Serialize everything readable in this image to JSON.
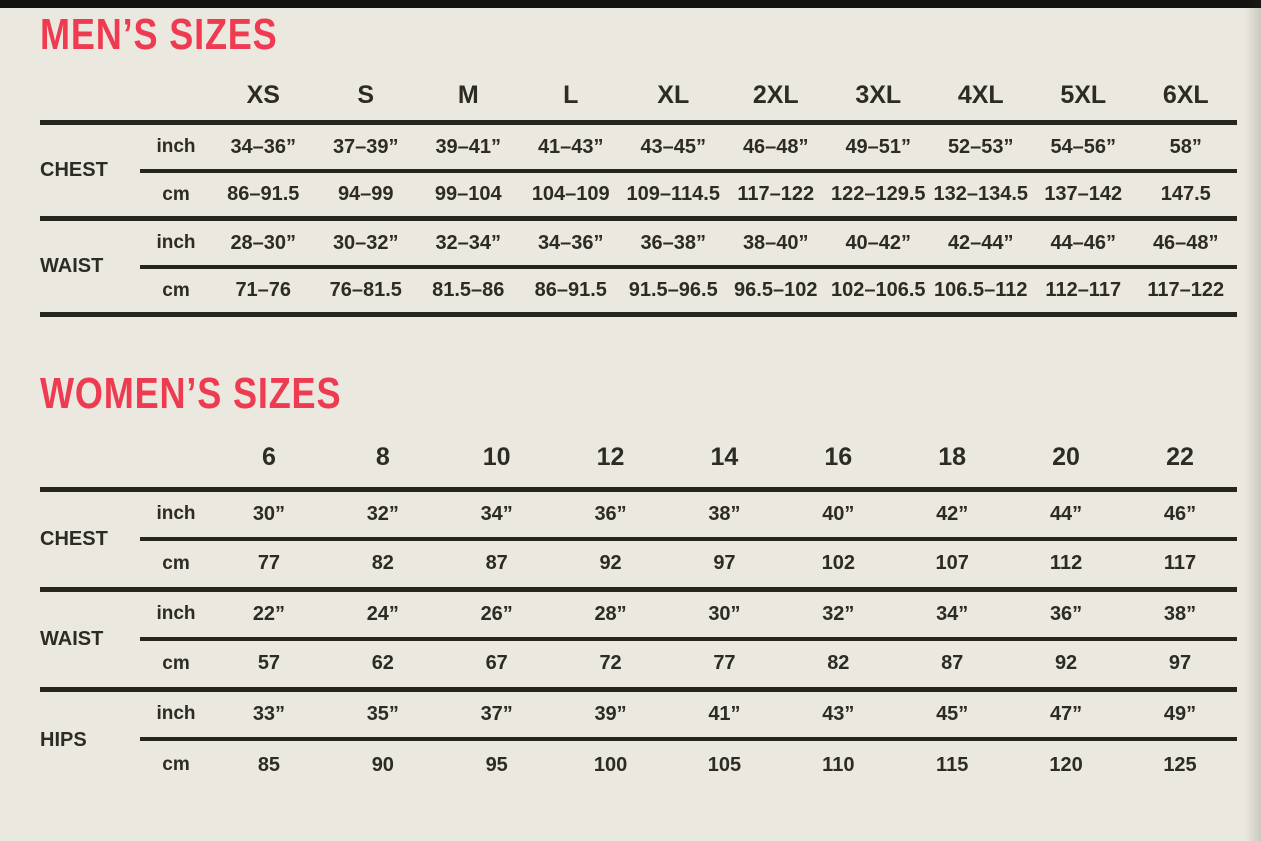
{
  "colors": {
    "paper": "#ebe8df",
    "accent": "#ee3b51",
    "ink": "#2d2b26",
    "rule": "#272520",
    "topbar": "#141210"
  },
  "tables": [
    {
      "id": "mens",
      "title": "MEN’S SIZES",
      "sizes": [
        "XS",
        "S",
        "M",
        "L",
        "XL",
        "2XL",
        "3XL",
        "4XL",
        "5XL",
        "6XL"
      ],
      "groups": [
        {
          "label": "CHEST",
          "rows": [
            {
              "unit": "inch",
              "values": [
                "34–36”",
                "37–39”",
                "39–41”",
                "41–43”",
                "43–45”",
                "46–48”",
                "49–51”",
                "52–53”",
                "54–56”",
                "58”"
              ]
            },
            {
              "unit": "cm",
              "values": [
                "86–91.5",
                "94–99",
                "99–104",
                "104–109",
                "109–114.5",
                "117–122",
                "122–129.5",
                "132–134.5",
                "137–142",
                "147.5"
              ]
            }
          ]
        },
        {
          "label": "WAIST",
          "rows": [
            {
              "unit": "inch",
              "values": [
                "28–30”",
                "30–32”",
                "32–34”",
                "34–36”",
                "36–38”",
                "38–40”",
                "40–42”",
                "42–44”",
                "44–46”",
                "46–48”"
              ]
            },
            {
              "unit": "cm",
              "values": [
                "71–76",
                "76–81.5",
                "81.5–86",
                "86–91.5",
                "91.5–96.5",
                "96.5–102",
                "102–106.5",
                "106.5–112",
                "112–117",
                "117–122"
              ]
            }
          ]
        }
      ]
    },
    {
      "id": "womens",
      "title": "WOMEN’S SIZES",
      "sizes": [
        "6",
        "8",
        "10",
        "12",
        "14",
        "16",
        "18",
        "20",
        "22"
      ],
      "groups": [
        {
          "label": "CHEST",
          "rows": [
            {
              "unit": "inch",
              "values": [
                "30”",
                "32”",
                "34”",
                "36”",
                "38”",
                "40”",
                "42”",
                "44”",
                "46”"
              ]
            },
            {
              "unit": "cm",
              "values": [
                "77",
                "82",
                "87",
                "92",
                "97",
                "102",
                "107",
                "112",
                "117"
              ]
            }
          ]
        },
        {
          "label": "WAIST",
          "rows": [
            {
              "unit": "inch",
              "values": [
                "22”",
                "24”",
                "26”",
                "28”",
                "30”",
                "32”",
                "34”",
                "36”",
                "38”"
              ]
            },
            {
              "unit": "cm",
              "values": [
                "57",
                "62",
                "67",
                "72",
                "77",
                "82",
                "87",
                "92",
                "97"
              ]
            }
          ]
        },
        {
          "label": "HIPS",
          "rows": [
            {
              "unit": "inch",
              "values": [
                "33”",
                "35”",
                "37”",
                "39”",
                "41”",
                "43”",
                "45”",
                "47”",
                "49”"
              ]
            },
            {
              "unit": "cm",
              "values": [
                "85",
                "90",
                "95",
                "100",
                "105",
                "110",
                "115",
                "120",
                "125"
              ]
            }
          ]
        }
      ]
    }
  ]
}
